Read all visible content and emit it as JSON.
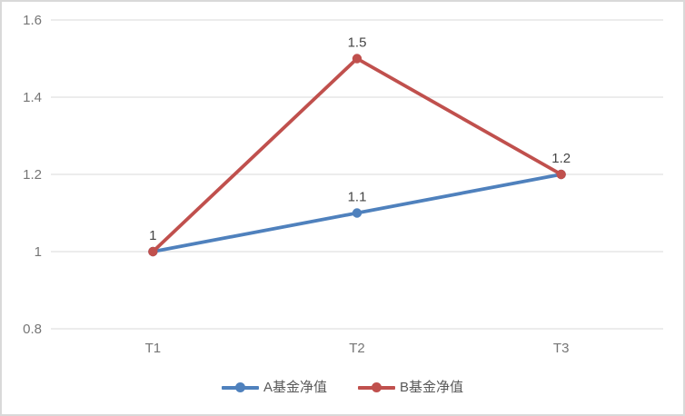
{
  "chart_data": {
    "type": "line",
    "title": "",
    "xlabel": "",
    "ylabel": "",
    "categories": [
      "T1",
      "T2",
      "T3"
    ],
    "series": [
      {
        "name": "A基金净值",
        "color": "#4F81BD",
        "values": [
          1,
          1.1,
          1.2
        ],
        "point_labels": [
          "",
          "1.1",
          ""
        ]
      },
      {
        "name": "B基金净值",
        "color": "#C0504D",
        "values": [
          1,
          1.5,
          1.2
        ],
        "point_labels": [
          "1",
          "1.5",
          "1.2"
        ]
      }
    ],
    "ylim": [
      0.8,
      1.6
    ],
    "y_ticks": [
      {
        "value": 1.6,
        "label": "1.6"
      },
      {
        "value": 1.4,
        "label": "1.4"
      },
      {
        "value": 1.2,
        "label": "1.2"
      },
      {
        "value": 1.0,
        "label": "1"
      },
      {
        "value": 0.8,
        "label": "0.8"
      }
    ],
    "grid": true,
    "legend_position": "bottom",
    "marker": "circle"
  },
  "colors": {
    "background": "#FFFFFF",
    "border": "#D9D9D9",
    "gridline": "#D9D9D9",
    "tick_text": "#757575",
    "data_label_text": "#444444",
    "legend_text": "#595959"
  }
}
